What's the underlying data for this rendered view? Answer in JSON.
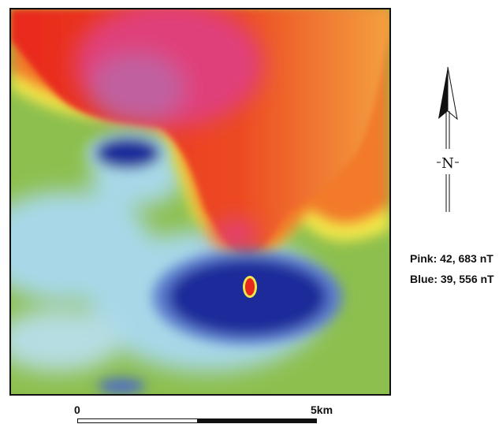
{
  "map": {
    "colors": {
      "pink": "#E0407A",
      "red": "#E8281C",
      "orange": "#F27A2A",
      "yellow": "#F3E84A",
      "green": "#8DBF4E",
      "light_blue": "#A8D8E8",
      "blue": "#1E2A9A",
      "magenta": "#C0609F"
    },
    "north_label": "N",
    "legend": {
      "pink_label": "Pink: 42, 683 nT",
      "blue_label": "Blue: 39, 556 nT"
    },
    "scale": {
      "start_label": "0",
      "end_label": "5km"
    }
  }
}
